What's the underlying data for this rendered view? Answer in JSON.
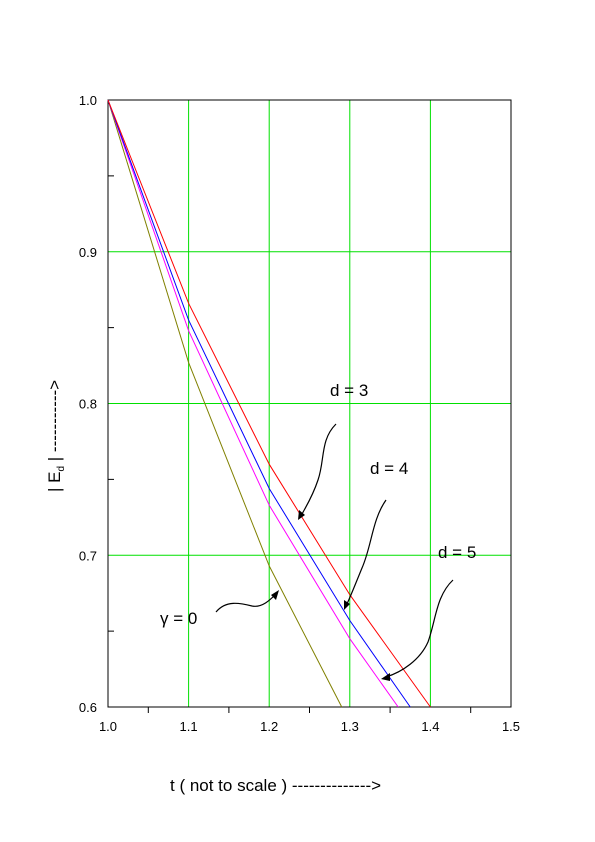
{
  "chart_data": {
    "type": "line",
    "title": "",
    "xlabel": "t  ( not to scale  )  -------------->",
    "ylabel_main": "| E",
    "ylabel_sub": "d",
    "ylabel_tail": " |  ----------->",
    "xlim": [
      1.0,
      1.5
    ],
    "ylim": [
      0.6,
      1.0
    ],
    "x_ticks": [
      "1.0",
      "1.1",
      "1.2",
      "1.3",
      "1.4",
      "1.5"
    ],
    "y_ticks": [
      "0.6",
      "0.7",
      "0.8",
      "0.9",
      "1.0"
    ],
    "grid": true,
    "grid_color": "#00e000",
    "series": [
      {
        "name": "γ = 0",
        "color": "#808000",
        "x": [
          1.0,
          1.1,
          1.2,
          1.29
        ],
        "y": [
          1.0,
          0.827,
          0.693,
          0.6
        ]
      },
      {
        "name": "d = 5",
        "color": "#ff00ff",
        "x": [
          1.0,
          1.1,
          1.2,
          1.3,
          1.36
        ],
        "y": [
          1.0,
          0.848,
          0.733,
          0.645,
          0.6
        ]
      },
      {
        "name": "d = 4",
        "color": "#0000ff",
        "x": [
          1.0,
          1.1,
          1.2,
          1.3,
          1.375
        ],
        "y": [
          1.0,
          0.855,
          0.744,
          0.657,
          0.6
        ]
      },
      {
        "name": "d = 3",
        "color": "#ff0000",
        "x": [
          1.0,
          1.1,
          1.2,
          1.3,
          1.4
        ],
        "y": [
          1.0,
          0.866,
          0.76,
          0.674,
          0.6
        ]
      }
    ],
    "annotations": [
      {
        "text": "d = 3"
      },
      {
        "text": "d = 4"
      },
      {
        "text": "d = 5"
      },
      {
        "text": "γ = 0"
      }
    ]
  }
}
